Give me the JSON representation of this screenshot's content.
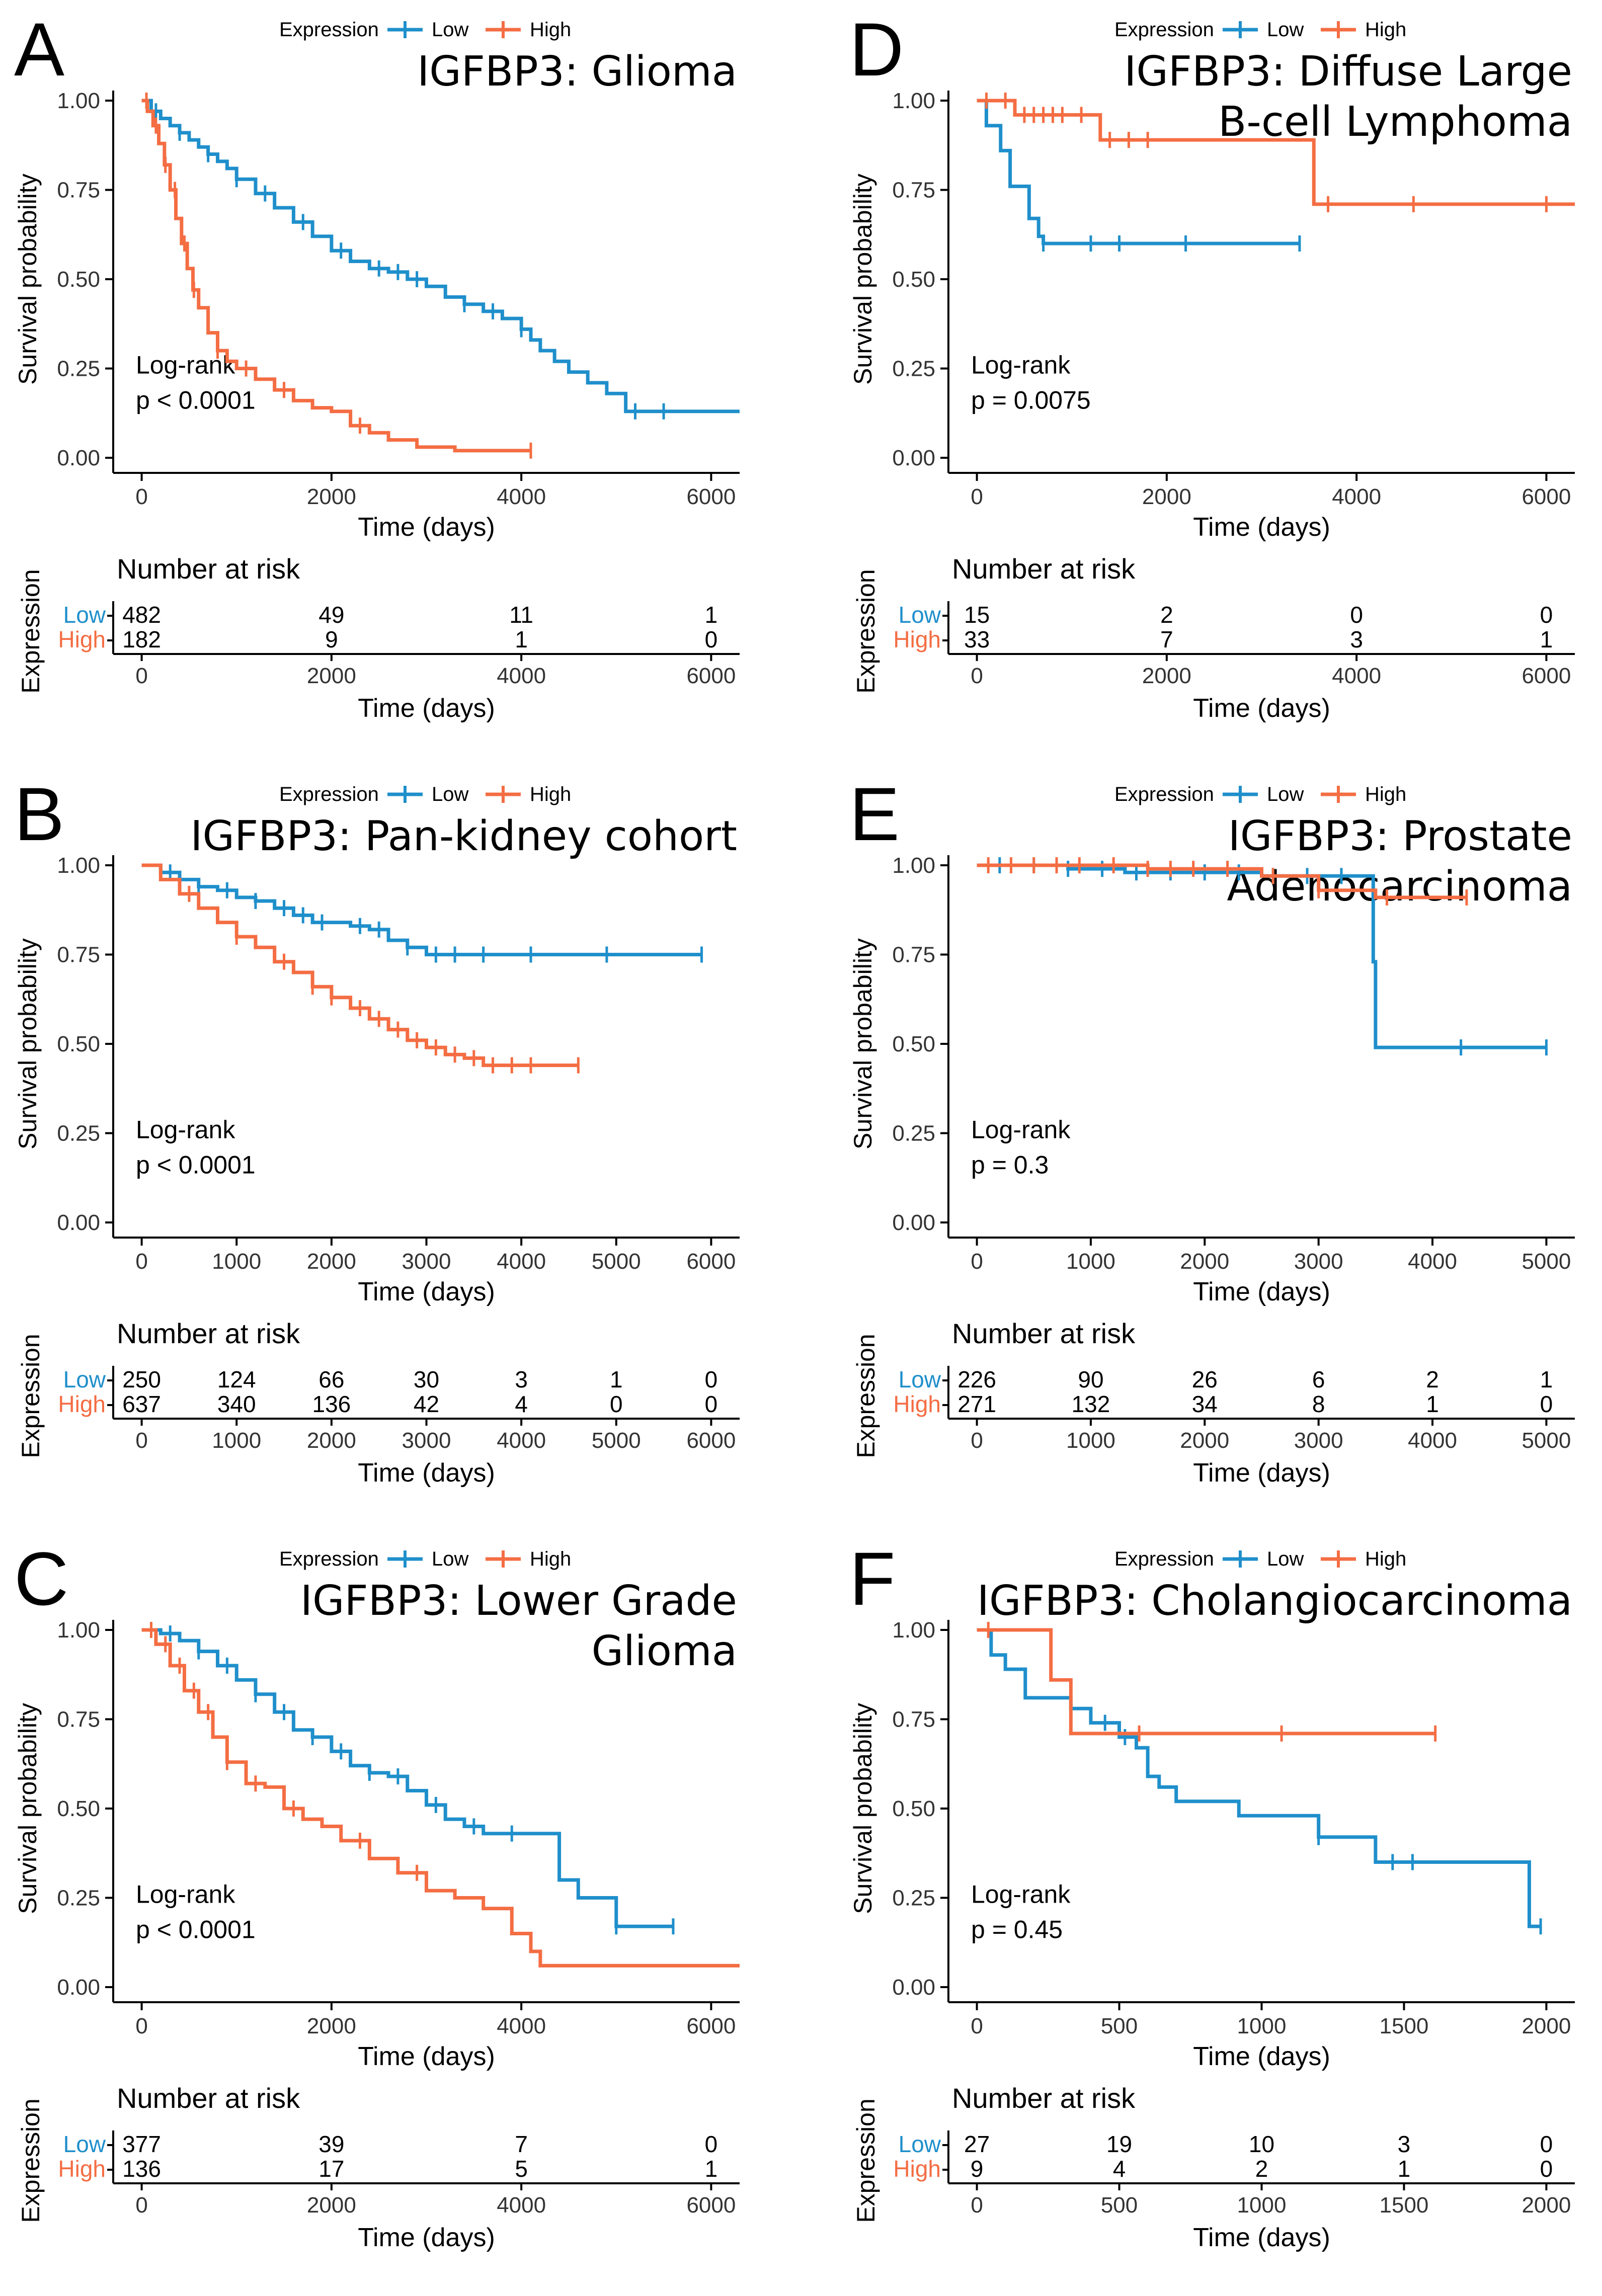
{
  "figure": {
    "legend_title": "Expression",
    "low_label": "Low",
    "high_label": "High",
    "risk_table_title": "Number at risk",
    "risk_ylabel": "Expression",
    "colors": {
      "low": "#1f8fcb",
      "high": "#f46d43",
      "axis": "#000000",
      "text": "#000000"
    }
  },
  "chart_data": [
    {
      "panel": "A",
      "type": "line",
      "subtype": "kaplan-meier",
      "title_lines": [
        "IGFBP3: Glioma"
      ],
      "xlabel": "Time (days)",
      "ylabel": "Survival probability",
      "xlim": [
        -300,
        6300
      ],
      "xticks": [
        0,
        2000,
        4000,
        6000
      ],
      "ylim": [
        0,
        1
      ],
      "yticks": [
        "0.00",
        "0.25",
        "0.50",
        "0.75",
        "1.00"
      ],
      "logrank_label": "Log-rank",
      "pvalue": "p < 0.0001",
      "series": [
        {
          "name": "Low",
          "x": [
            0,
            100,
            200,
            300,
            400,
            500,
            600,
            700,
            800,
            900,
            1000,
            1200,
            1400,
            1600,
            1800,
            2000,
            2200,
            2400,
            2600,
            2800,
            3000,
            3200,
            3400,
            3600,
            3800,
            4000,
            4100,
            4200,
            4350,
            4500,
            4700,
            4900,
            5100,
            5400,
            6300
          ],
          "y": [
            1.0,
            0.97,
            0.95,
            0.93,
            0.91,
            0.89,
            0.87,
            0.85,
            0.83,
            0.81,
            0.78,
            0.74,
            0.7,
            0.66,
            0.62,
            0.58,
            0.55,
            0.53,
            0.52,
            0.5,
            0.48,
            0.45,
            0.43,
            0.41,
            0.39,
            0.36,
            0.33,
            0.3,
            0.27,
            0.24,
            0.21,
            0.18,
            0.13,
            0.13,
            0.13
          ],
          "censor_x": [
            150,
            400,
            700,
            1000,
            1300,
            1700,
            2100,
            2500,
            2700,
            2900,
            3400,
            3700,
            4000,
            5200,
            5500
          ]
        },
        {
          "name": "High",
          "x": [
            0,
            60,
            120,
            180,
            240,
            300,
            360,
            420,
            480,
            540,
            600,
            700,
            800,
            900,
            1000,
            1200,
            1400,
            1600,
            1800,
            2000,
            2200,
            2400,
            2600,
            2900,
            3300,
            4100
          ],
          "y": [
            1.0,
            0.97,
            0.93,
            0.88,
            0.82,
            0.75,
            0.67,
            0.6,
            0.53,
            0.47,
            0.42,
            0.35,
            0.3,
            0.27,
            0.25,
            0.22,
            0.19,
            0.16,
            0.14,
            0.13,
            0.09,
            0.07,
            0.05,
            0.03,
            0.02,
            0.02
          ],
          "censor_x": [
            50,
            150,
            250,
            350,
            450,
            550,
            800,
            1100,
            1500,
            2300,
            4100
          ]
        }
      ],
      "risk_table": {
        "times": [
          0,
          2000,
          4000,
          6000
        ],
        "low": [
          "482",
          "49",
          "11",
          "1"
        ],
        "high": [
          "182",
          "9",
          "1",
          "0"
        ]
      }
    },
    {
      "panel": "B",
      "type": "line",
      "subtype": "kaplan-meier",
      "title_lines": [
        "IGFBP3: Pan-kidney cohort"
      ],
      "xlabel": "Time (days)",
      "ylabel": "Survival probability",
      "xlim": [
        -300,
        6300
      ],
      "xticks": [
        0,
        1000,
        2000,
        3000,
        4000,
        5000,
        6000
      ],
      "ylim": [
        0,
        1
      ],
      "yticks": [
        "0.00",
        "0.25",
        "0.50",
        "0.75",
        "1.00"
      ],
      "logrank_label": "Log-rank",
      "pvalue": "p < 0.0001",
      "series": [
        {
          "name": "Low",
          "x": [
            0,
            200,
            400,
            600,
            800,
            1000,
            1200,
            1400,
            1600,
            1800,
            2000,
            2200,
            2400,
            2600,
            2800,
            3000,
            5900
          ],
          "y": [
            1.0,
            0.98,
            0.96,
            0.94,
            0.93,
            0.91,
            0.9,
            0.88,
            0.86,
            0.84,
            0.84,
            0.83,
            0.82,
            0.79,
            0.77,
            0.75,
            0.75
          ],
          "censor_x": [
            300,
            600,
            900,
            1200,
            1500,
            1700,
            1900,
            2300,
            2500,
            2800,
            3100,
            3300,
            3600,
            4100,
            4900,
            5900
          ]
        },
        {
          "name": "High",
          "x": [
            0,
            200,
            400,
            600,
            800,
            1000,
            1200,
            1400,
            1600,
            1800,
            2000,
            2200,
            2400,
            2600,
            2800,
            3000,
            3200,
            3400,
            3600,
            4600
          ],
          "y": [
            1.0,
            0.96,
            0.92,
            0.88,
            0.84,
            0.8,
            0.77,
            0.73,
            0.7,
            0.66,
            0.63,
            0.6,
            0.57,
            0.54,
            0.51,
            0.49,
            0.47,
            0.46,
            0.44,
            0.44
          ],
          "censor_x": [
            500,
            1000,
            1500,
            1800,
            2000,
            2300,
            2500,
            2700,
            2900,
            3100,
            3300,
            3500,
            3700,
            3900,
            4100,
            4600
          ]
        }
      ],
      "risk_table": {
        "times": [
          0,
          1000,
          2000,
          3000,
          4000,
          5000,
          6000
        ],
        "low": [
          "250",
          "124",
          "66",
          "30",
          "3",
          "1",
          "0"
        ],
        "high": [
          "637",
          "340",
          "136",
          "42",
          "4",
          "0",
          "0"
        ]
      }
    },
    {
      "panel": "C",
      "type": "line",
      "subtype": "kaplan-meier",
      "title_lines": [
        "IGFBP3: Lower Grade",
        "Glioma"
      ],
      "xlabel": "Time (days)",
      "ylabel": "Survival probability",
      "xlim": [
        -300,
        6300
      ],
      "xticks": [
        0,
        2000,
        4000,
        6000
      ],
      "ylim": [
        0,
        1
      ],
      "yticks": [
        "0.00",
        "0.25",
        "0.50",
        "0.75",
        "1.00"
      ],
      "logrank_label": "Log-rank",
      "pvalue": "p < 0.0001",
      "series": [
        {
          "name": "Low",
          "x": [
            0,
            200,
            400,
            600,
            800,
            1000,
            1200,
            1400,
            1600,
            1800,
            2000,
            2200,
            2400,
            2600,
            2800,
            3000,
            3200,
            3400,
            3600,
            3800,
            4000,
            4200,
            4400,
            4600,
            4800,
            5000,
            5600
          ],
          "y": [
            1.0,
            0.99,
            0.97,
            0.94,
            0.9,
            0.86,
            0.82,
            0.77,
            0.72,
            0.7,
            0.66,
            0.62,
            0.6,
            0.59,
            0.55,
            0.51,
            0.47,
            0.45,
            0.43,
            0.43,
            0.43,
            0.43,
            0.3,
            0.25,
            0.25,
            0.17,
            0.17
          ],
          "censor_x": [
            300,
            600,
            900,
            1200,
            1500,
            1800,
            2100,
            2400,
            2700,
            3100,
            3500,
            3900,
            5000,
            5600
          ]
        },
        {
          "name": "High",
          "x": [
            0,
            150,
            300,
            450,
            600,
            750,
            900,
            1100,
            1300,
            1500,
            1700,
            1900,
            2100,
            2400,
            2700,
            3000,
            3300,
            3600,
            3900,
            4100,
            4200,
            6300
          ],
          "y": [
            1.0,
            0.96,
            0.9,
            0.83,
            0.77,
            0.7,
            0.63,
            0.57,
            0.56,
            0.5,
            0.47,
            0.45,
            0.41,
            0.36,
            0.32,
            0.27,
            0.25,
            0.22,
            0.15,
            0.1,
            0.06,
            0.06
          ],
          "censor_x": [
            100,
            250,
            400,
            550,
            700,
            900,
            1200,
            1600,
            2300,
            2900
          ]
        }
      ],
      "risk_table": {
        "times": [
          0,
          2000,
          4000,
          6000
        ],
        "low": [
          "377",
          "39",
          "7",
          "0"
        ],
        "high": [
          "136",
          "17",
          "5",
          "1"
        ]
      }
    },
    {
      "panel": "D",
      "type": "line",
      "subtype": "kaplan-meier",
      "title_lines": [
        "IGFBP3: Diffuse Large",
        "B-cell Lymphoma"
      ],
      "xlabel": "Time (days)",
      "ylabel": "Survival probability",
      "xlim": [
        -300,
        6300
      ],
      "xticks": [
        0,
        2000,
        4000,
        6000
      ],
      "ylim": [
        0,
        1
      ],
      "yticks": [
        "0.00",
        "0.25",
        "0.50",
        "0.75",
        "1.00"
      ],
      "logrank_label": "Log-rank",
      "pvalue": "p = 0.0075",
      "series": [
        {
          "name": "Low",
          "x": [
            0,
            100,
            250,
            350,
            550,
            650,
            700,
            3400
          ],
          "y": [
            1.0,
            0.93,
            0.86,
            0.76,
            0.67,
            0.62,
            0.6,
            0.6
          ],
          "censor_x": [
            700,
            1200,
            1500,
            2200,
            3400
          ]
        },
        {
          "name": "High",
          "x": [
            0,
            400,
            1300,
            3500,
            3550,
            6300
          ],
          "y": [
            1.0,
            0.96,
            0.89,
            0.89,
            0.71,
            0.71
          ],
          "censor_x": [
            100,
            300,
            500,
            600,
            700,
            800,
            900,
            1100,
            1400,
            1600,
            1800,
            3700,
            4600,
            6000
          ]
        }
      ],
      "risk_table": {
        "times": [
          0,
          2000,
          4000,
          6000
        ],
        "low": [
          "15",
          "2",
          "0",
          "0"
        ],
        "high": [
          "33",
          "7",
          "3",
          "1"
        ]
      }
    },
    {
      "panel": "E",
      "type": "line",
      "subtype": "kaplan-meier",
      "title_lines": [
        "IGFBP3: Prostate",
        "Adenocarcinoma"
      ],
      "xlabel": "Time (days)",
      "ylabel": "Survival probability",
      "xlim": [
        -250,
        5250
      ],
      "xticks": [
        0,
        1000,
        2000,
        3000,
        4000,
        5000
      ],
      "ylim": [
        0,
        1
      ],
      "yticks": [
        "0.00",
        "0.25",
        "0.50",
        "0.75",
        "1.00"
      ],
      "logrank_label": "Log-rank",
      "pvalue": "p = 0.3",
      "series": [
        {
          "name": "Low",
          "x": [
            0,
            800,
            1300,
            1800,
            2500,
            3000,
            3450,
            3480,
            3500,
            5000
          ],
          "y": [
            1.0,
            0.99,
            0.98,
            0.98,
            0.97,
            0.97,
            0.97,
            0.73,
            0.49,
            0.49
          ],
          "censor_x": [
            200,
            500,
            800,
            1100,
            1400,
            1700,
            2000,
            2300,
            2600,
            2900,
            3200,
            4250,
            5000
          ]
        },
        {
          "name": "High",
          "x": [
            0,
            1500,
            2500,
            3000,
            3500,
            4300
          ],
          "y": [
            1.0,
            0.99,
            0.97,
            0.93,
            0.91,
            0.91
          ],
          "censor_x": [
            100,
            300,
            500,
            700,
            900,
            1200,
            1500,
            1700,
            1900,
            2200,
            2600,
            3000,
            3600,
            4300
          ]
        }
      ],
      "risk_table": {
        "times": [
          0,
          1000,
          2000,
          3000,
          4000,
          5000
        ],
        "low": [
          "226",
          "90",
          "26",
          "6",
          "2",
          "1"
        ],
        "high": [
          "271",
          "132",
          "34",
          "8",
          "1",
          "0"
        ]
      }
    },
    {
      "panel": "F",
      "type": "line",
      "subtype": "kaplan-meier",
      "title_lines": [
        "IGFBP3: Cholangiocarcinoma"
      ],
      "xlabel": "Time (days)",
      "ylabel": "Survival probability",
      "xlim": [
        -100,
        2100
      ],
      "xticks": [
        0,
        500,
        1000,
        1500,
        2000
      ],
      "ylim": [
        0,
        1
      ],
      "yticks": [
        "0.00",
        "0.25",
        "0.50",
        "0.75",
        "1.00"
      ],
      "logrank_label": "Log-rank",
      "pvalue": "p = 0.45",
      "series": [
        {
          "name": "Low",
          "x": [
            0,
            50,
            100,
            170,
            330,
            400,
            500,
            560,
            600,
            640,
            700,
            920,
            1050,
            1200,
            1400,
            1940,
            1980
          ],
          "y": [
            1.0,
            0.93,
            0.89,
            0.81,
            0.78,
            0.74,
            0.7,
            0.67,
            0.59,
            0.56,
            0.52,
            0.48,
            0.48,
            0.42,
            0.35,
            0.17,
            0.17
          ],
          "censor_x": [
            450,
            520,
            1200,
            1460,
            1530,
            1980
          ]
        },
        {
          "name": "High",
          "x": [
            0,
            260,
            330,
            1610
          ],
          "y": [
            1.0,
            0.86,
            0.71,
            0.71
          ],
          "censor_x": [
            40,
            570,
            1070,
            1610
          ]
        }
      ],
      "risk_table": {
        "times": [
          0,
          500,
          1000,
          1500,
          2000
        ],
        "low": [
          "27",
          "19",
          "10",
          "3",
          "0"
        ],
        "high": [
          "9",
          "4",
          "2",
          "1",
          "0"
        ]
      }
    }
  ]
}
